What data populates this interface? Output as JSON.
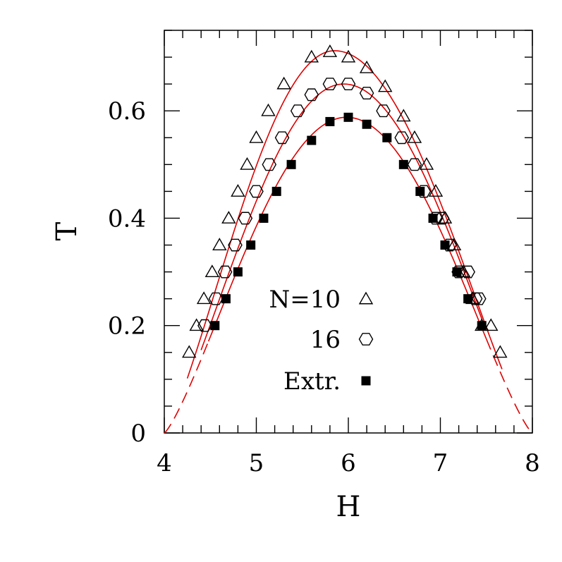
{
  "chart_data": {
    "type": "scatter",
    "xlabel": "H",
    "ylabel": "T",
    "xlim": [
      4,
      8
    ],
    "ylim": [
      0,
      0.75
    ],
    "x_ticks": [
      "4",
      "5",
      "6",
      "7",
      "8"
    ],
    "y_ticks": [
      "0",
      "0.2",
      "0.4",
      "0.6"
    ],
    "legend_position": "lower-center",
    "series": [
      {
        "name": "N=10",
        "marker": "open-triangle",
        "points": [
          [
            4.27,
            0.15
          ],
          [
            4.35,
            0.2
          ],
          [
            4.43,
            0.25
          ],
          [
            4.52,
            0.3
          ],
          [
            4.6,
            0.35
          ],
          [
            4.7,
            0.4
          ],
          [
            4.8,
            0.45
          ],
          [
            4.9,
            0.5
          ],
          [
            5.0,
            0.55
          ],
          [
            5.13,
            0.6
          ],
          [
            5.3,
            0.65
          ],
          [
            5.6,
            0.7
          ],
          [
            5.8,
            0.71
          ],
          [
            6.0,
            0.7
          ],
          [
            6.2,
            0.68
          ],
          [
            6.4,
            0.645
          ],
          [
            6.6,
            0.59
          ],
          [
            6.72,
            0.55
          ],
          [
            6.85,
            0.5
          ],
          [
            6.95,
            0.45
          ],
          [
            7.05,
            0.4
          ],
          [
            7.15,
            0.35
          ],
          [
            7.25,
            0.3
          ],
          [
            7.35,
            0.25
          ],
          [
            7.45,
            0.2
          ],
          [
            7.55,
            0.2
          ],
          [
            7.65,
            0.15
          ]
        ]
      },
      {
        "name": "16",
        "marker": "open-hexagon",
        "points": [
          [
            4.44,
            0.2
          ],
          [
            4.56,
            0.25
          ],
          [
            4.66,
            0.3
          ],
          [
            4.77,
            0.35
          ],
          [
            4.88,
            0.4
          ],
          [
            5.0,
            0.45
          ],
          [
            5.14,
            0.5
          ],
          [
            5.28,
            0.55
          ],
          [
            5.45,
            0.6
          ],
          [
            5.6,
            0.63
          ],
          [
            5.8,
            0.65
          ],
          [
            6.0,
            0.65
          ],
          [
            6.2,
            0.633
          ],
          [
            6.38,
            0.6
          ],
          [
            6.58,
            0.55
          ],
          [
            6.72,
            0.5
          ],
          [
            6.82,
            0.45
          ],
          [
            6.95,
            0.4
          ],
          [
            7.02,
            0.4
          ],
          [
            7.1,
            0.35
          ],
          [
            7.2,
            0.3
          ],
          [
            7.3,
            0.3
          ],
          [
            7.38,
            0.25
          ],
          [
            7.42,
            0.25
          ]
        ]
      },
      {
        "name": "Extr.",
        "marker": "filled-square",
        "points": [
          [
            4.55,
            0.2
          ],
          [
            4.67,
            0.25
          ],
          [
            4.8,
            0.3
          ],
          [
            4.94,
            0.35
          ],
          [
            5.08,
            0.4
          ],
          [
            5.22,
            0.45
          ],
          [
            5.38,
            0.5
          ],
          [
            5.6,
            0.545
          ],
          [
            5.8,
            0.58
          ],
          [
            6.0,
            0.588
          ],
          [
            6.2,
            0.575
          ],
          [
            6.42,
            0.55
          ],
          [
            6.6,
            0.5
          ],
          [
            6.78,
            0.45
          ],
          [
            6.92,
            0.4
          ],
          [
            7.05,
            0.35
          ],
          [
            7.18,
            0.3
          ],
          [
            7.3,
            0.25
          ],
          [
            7.45,
            0.2
          ]
        ]
      }
    ],
    "fit_curves": [
      {
        "color": "#dd0000",
        "x_range": [
          4.25,
          7.67
        ],
        "peak": [
          5.85,
          0.712
        ],
        "base": [
          4.0,
          8.0
        ]
      },
      {
        "color": "#dd0000",
        "x_range": [
          4.4,
          7.45
        ],
        "peak": [
          5.95,
          0.65
        ],
        "base": [
          4.0,
          8.0
        ]
      },
      {
        "color": "#dd0000",
        "x_range": [
          4.48,
          7.5
        ],
        "peak": [
          5.98,
          0.588
        ],
        "base": [
          4.0,
          8.0
        ],
        "extended_dashed_to": [
          4.0,
          8.0
        ]
      }
    ]
  }
}
